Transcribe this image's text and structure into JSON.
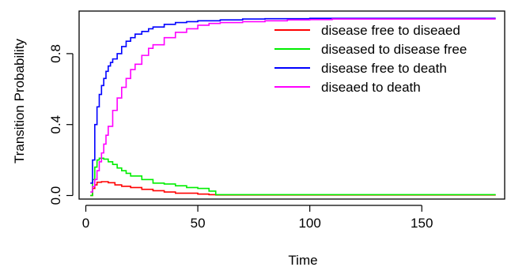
{
  "chart_data": {
    "type": "line",
    "step": true,
    "xlabel": "Time",
    "ylabel": "Transition Probability",
    "xlim": [
      -3,
      187
    ],
    "ylim": [
      -0.02,
      1.04
    ],
    "xticks": [
      0,
      50,
      100,
      150
    ],
    "yticks": [
      0.0,
      0.4,
      0.8
    ],
    "ytick_labels": [
      "0.0",
      "0.4",
      "0.8"
    ],
    "legend_position": "top-right",
    "grid": false,
    "series": [
      {
        "name": "disease free to diseaed",
        "color": "#ff0000",
        "x": [
          2,
          3,
          4,
          5,
          7,
          10,
          13,
          16,
          20,
          25,
          30,
          35,
          40,
          50,
          55,
          58,
          100,
          183
        ],
        "y": [
          0.0,
          0.04,
          0.06,
          0.075,
          0.078,
          0.072,
          0.06,
          0.052,
          0.045,
          0.035,
          0.027,
          0.02,
          0.013,
          0.008,
          0.005,
          0.003,
          0.003,
          0.003
        ]
      },
      {
        "name": "diseased to disease free",
        "color": "#00ee00",
        "x": [
          2,
          3,
          4,
          5,
          6,
          8,
          10,
          12,
          14,
          16,
          18,
          20,
          25,
          30,
          35,
          40,
          45,
          50,
          55,
          58,
          100,
          183
        ],
        "y": [
          0.0,
          0.09,
          0.16,
          0.2,
          0.21,
          0.205,
          0.19,
          0.175,
          0.155,
          0.14,
          0.125,
          0.11,
          0.09,
          0.07,
          0.065,
          0.055,
          0.045,
          0.04,
          0.025,
          0.005,
          0.005,
          0.005
        ]
      },
      {
        "name": "disease free to death",
        "color": "#0000ff",
        "x": [
          2,
          3,
          4,
          5,
          6,
          7,
          8,
          9,
          10,
          11,
          12,
          14,
          16,
          18,
          20,
          22,
          25,
          28,
          30,
          35,
          40,
          45,
          50,
          60,
          70,
          80,
          100,
          183
        ],
        "y": [
          0.07,
          0.2,
          0.4,
          0.5,
          0.57,
          0.62,
          0.66,
          0.7,
          0.73,
          0.75,
          0.77,
          0.8,
          0.84,
          0.87,
          0.89,
          0.91,
          0.925,
          0.94,
          0.95,
          0.965,
          0.975,
          0.98,
          0.985,
          0.99,
          0.995,
          0.997,
          0.999,
          0.999
        ]
      },
      {
        "name": "diseaed to death",
        "color": "#ff00ff",
        "x": [
          2,
          3,
          4,
          5,
          6,
          7,
          8,
          9,
          10,
          12,
          14,
          16,
          18,
          20,
          22,
          25,
          28,
          30,
          35,
          40,
          45,
          50,
          55,
          60,
          70,
          80,
          90,
          100,
          110,
          183
        ],
        "y": [
          0.02,
          0.05,
          0.09,
          0.14,
          0.19,
          0.24,
          0.29,
          0.34,
          0.39,
          0.48,
          0.55,
          0.61,
          0.66,
          0.71,
          0.74,
          0.79,
          0.83,
          0.85,
          0.89,
          0.92,
          0.94,
          0.96,
          0.97,
          0.975,
          0.98,
          0.985,
          0.99,
          0.992,
          0.995,
          0.995
        ]
      }
    ]
  }
}
